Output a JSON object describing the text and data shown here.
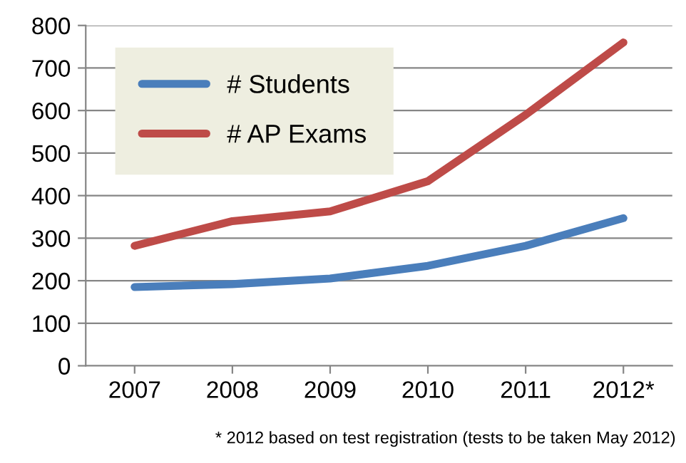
{
  "chart_data": {
    "type": "line",
    "categories": [
      "2007",
      "2008",
      "2009",
      "2010",
      "2011",
      "2012*"
    ],
    "series": [
      {
        "name": "# Students",
        "color": "#4a7ebb",
        "values": [
          185,
          192,
          205,
          235,
          282,
          347
        ]
      },
      {
        "name": "# AP Exams",
        "color": "#be4b48",
        "values": [
          282,
          340,
          363,
          434,
          590,
          760
        ]
      }
    ],
    "ylim": [
      0,
      800
    ],
    "yticks": [
      0,
      100,
      200,
      300,
      400,
      500,
      600,
      700,
      800
    ],
    "grid": "y",
    "legend": "top left",
    "marker": "none",
    "line_style": "solid",
    "annotations": [
      "* 2012 based on test registration (tests to be taken May 2012)"
    ]
  }
}
